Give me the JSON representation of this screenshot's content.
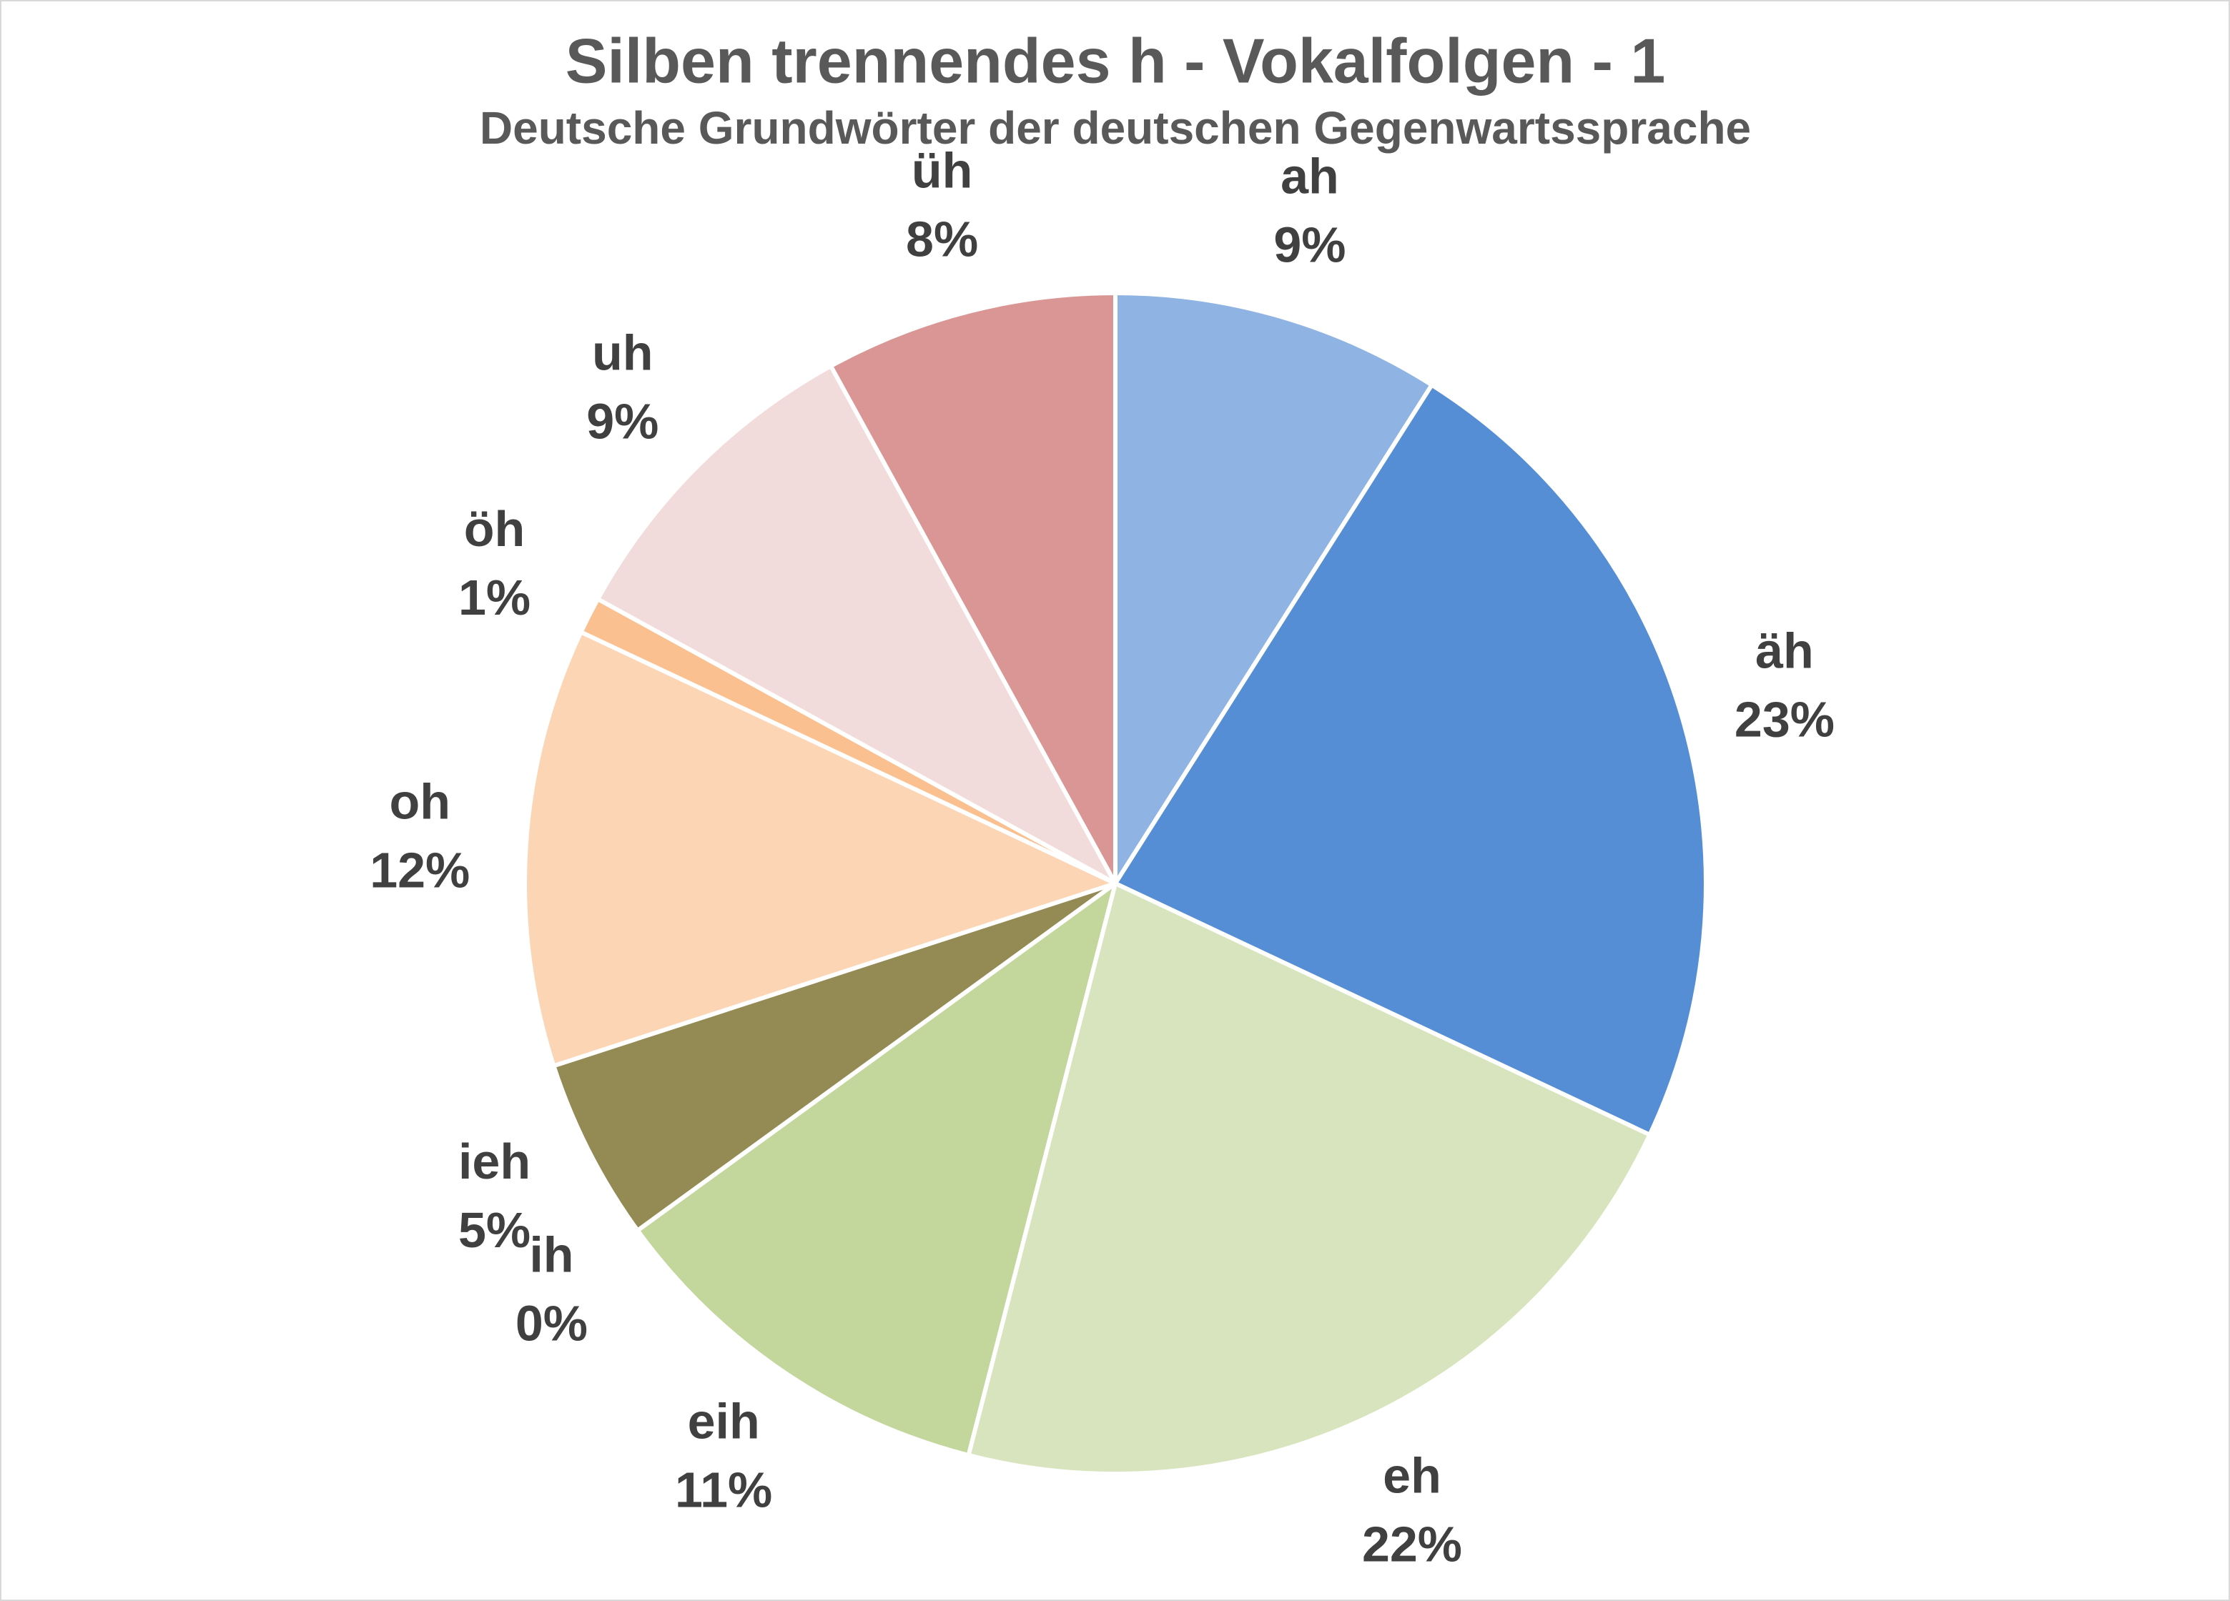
{
  "chart_data": {
    "type": "pie",
    "title": "Silben trennendes h - Vokalfolgen - 1",
    "subtitle": "Deutsche Grundwörter der deutschen Gegenwartssprache",
    "categories": [
      "ah",
      "äh",
      "eh",
      "eih",
      "ih",
      "ieh",
      "oh",
      "öh",
      "uh",
      "üh"
    ],
    "values": [
      9,
      23,
      22,
      11,
      0,
      5,
      12,
      1,
      9,
      8
    ],
    "value_labels": [
      "9%",
      "23%",
      "22%",
      "11%",
      "0%",
      "5%",
      "12%",
      "1%",
      "9%",
      "8%"
    ],
    "colors": [
      "#8fb3e2",
      "#558ed5",
      "#d7e4bd",
      "#c3d69b",
      "#77933c",
      "#948a54",
      "#fcd5b5",
      "#fac090",
      "#f2dcdb",
      "#d99694"
    ]
  }
}
